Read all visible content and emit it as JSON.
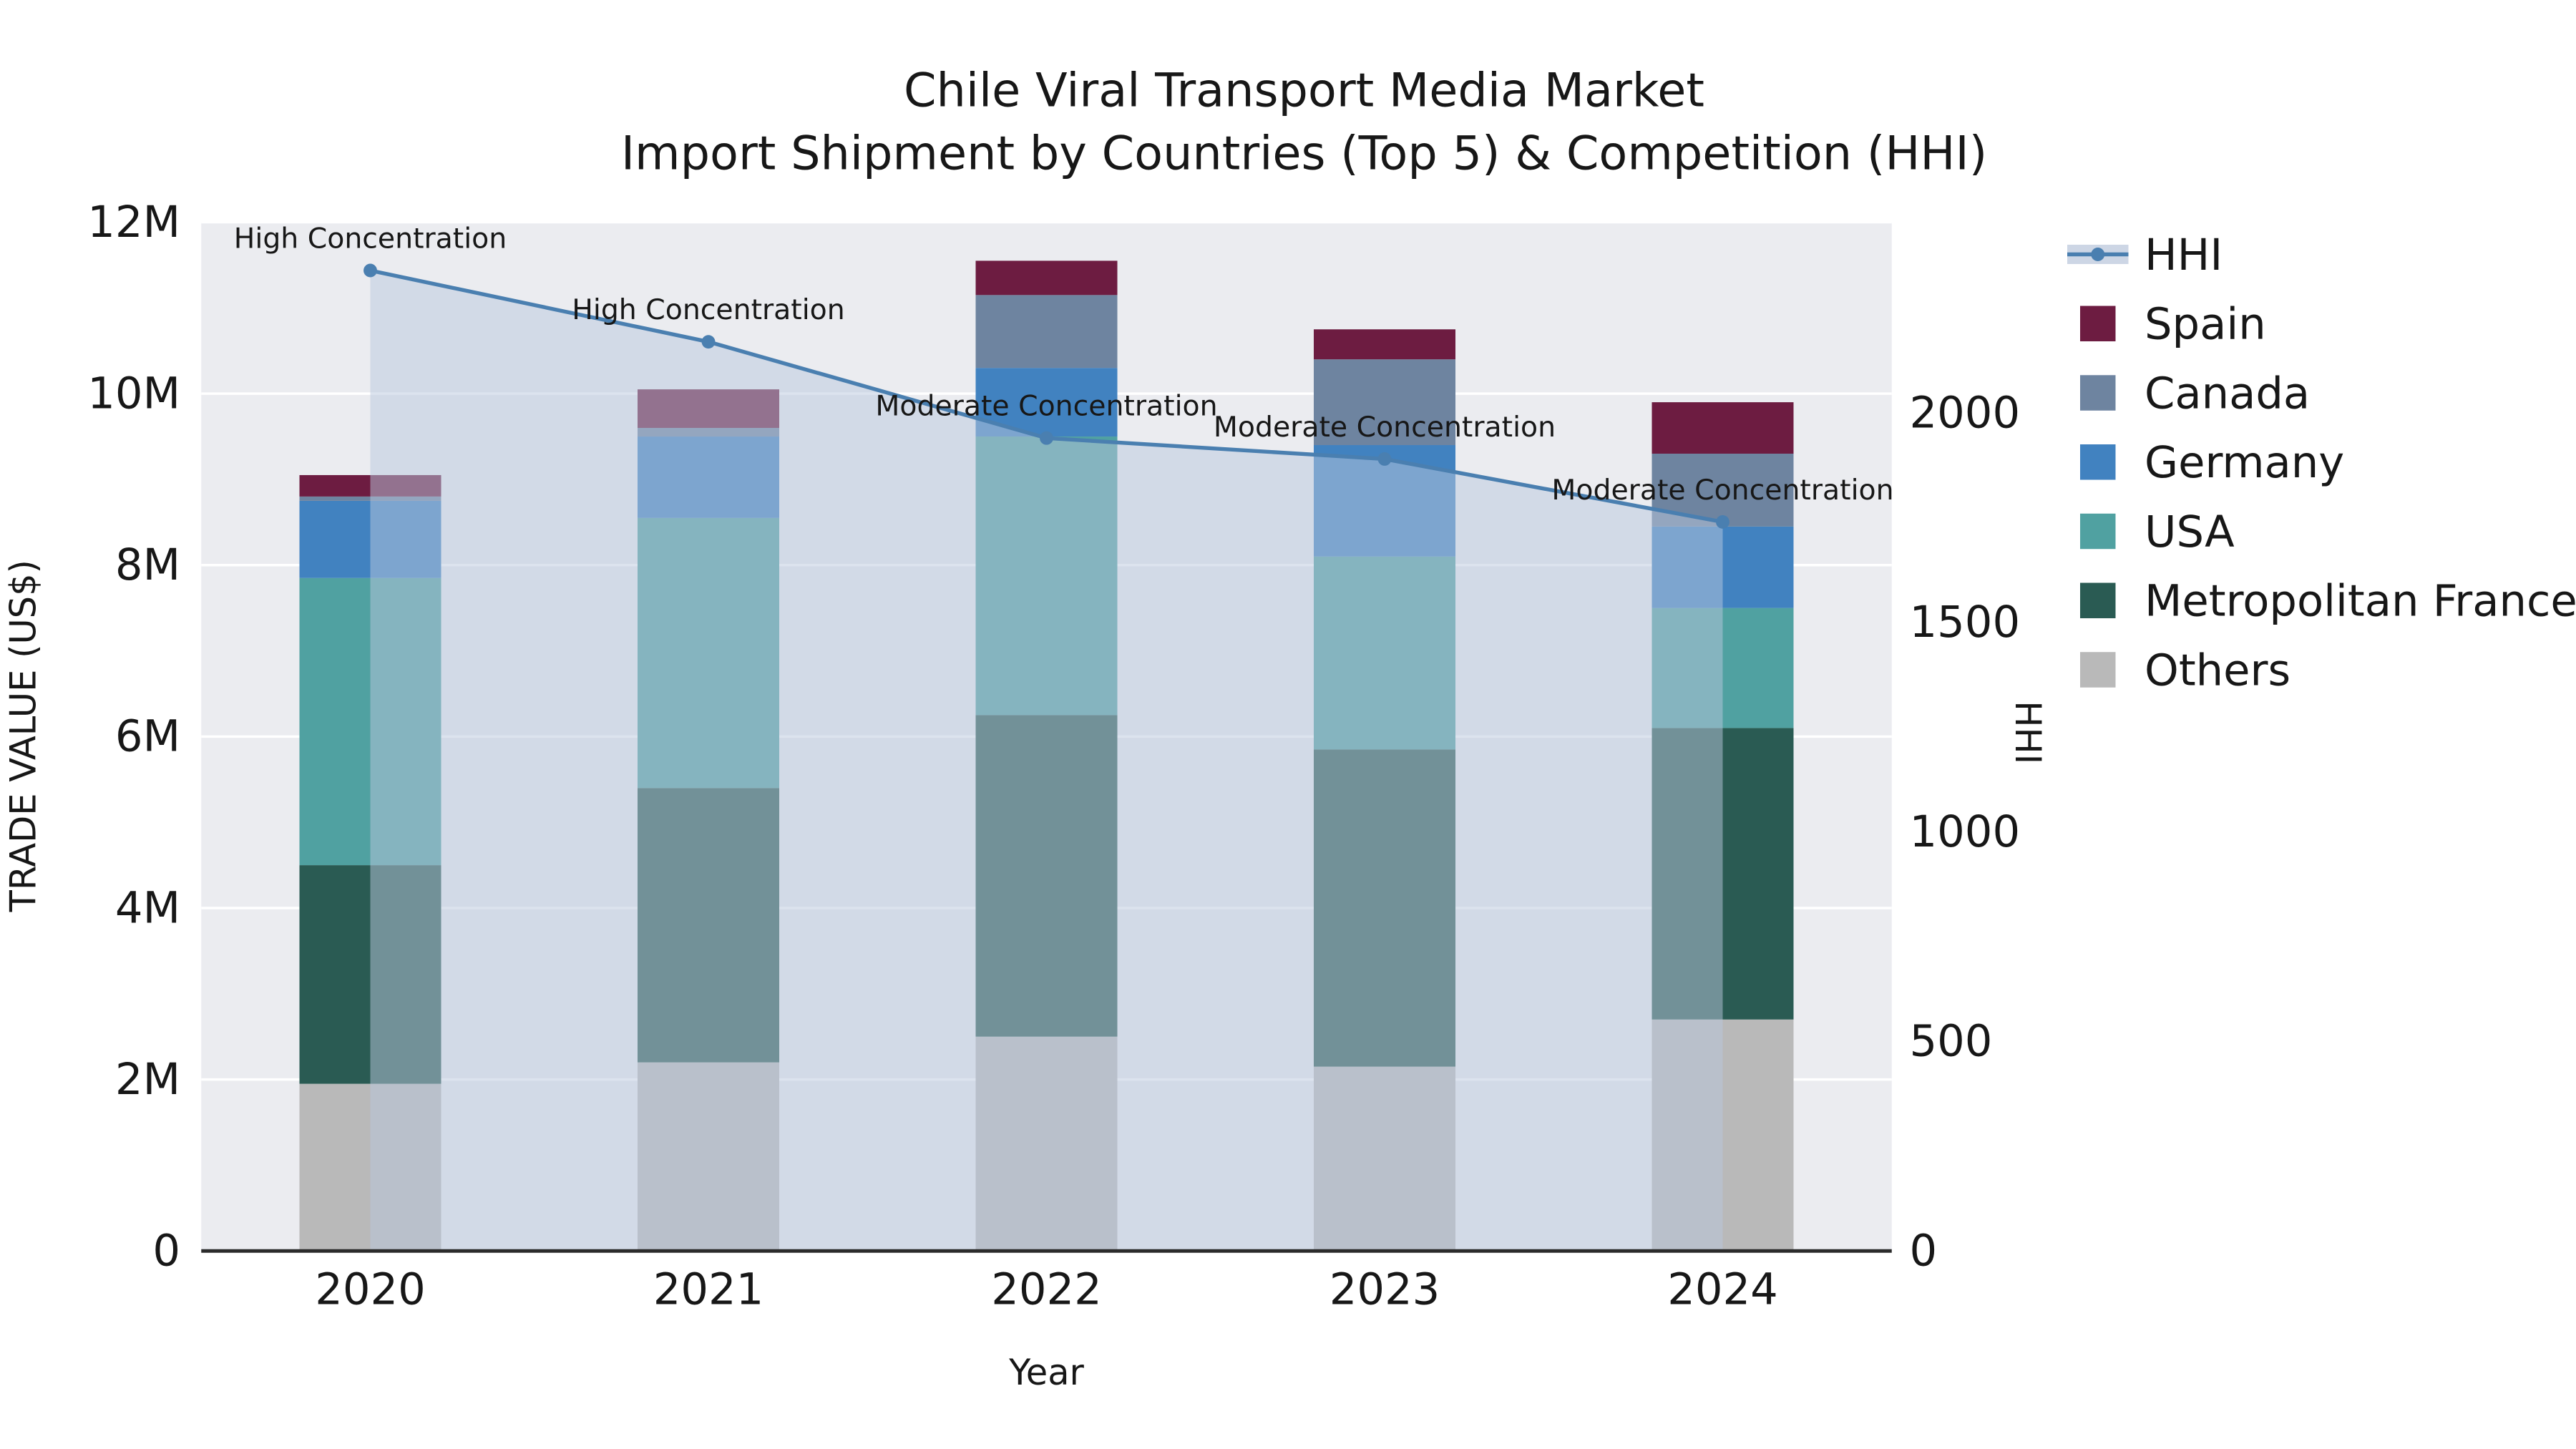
{
  "title": {
    "line1": "Chile Viral Transport Media Market",
    "line2": "Import Shipment by Countries (Top 5) & Competition (HHI)"
  },
  "chart_data": {
    "type": "bar",
    "subtype": "stacked-bars-with-hhi-line-and-area",
    "categories": [
      "2020",
      "2021",
      "2022",
      "2023",
      "2024"
    ],
    "xlabel": "Year",
    "ylabel_left": "TRADE VALUE (US$)",
    "ylabel_right": "HHI",
    "y_left_ticks": [
      "0",
      "2M",
      "4M",
      "6M",
      "8M",
      "10M",
      "12M"
    ],
    "y_left_range_millions": [
      0,
      12
    ],
    "y_right_ticks": [
      "0",
      "500",
      "1000",
      "1500",
      "2000"
    ],
    "value_unit": "millions US$",
    "grid": true,
    "legend_position": "right-outside",
    "series": [
      {
        "name": "Others",
        "color": "#b9b9b9",
        "values": [
          1.95,
          2.2,
          2.5,
          2.15,
          2.7
        ]
      },
      {
        "name": "Metropolitan France",
        "color": "#2a5b53",
        "values": [
          2.55,
          3.2,
          3.75,
          3.7,
          3.4
        ]
      },
      {
        "name": "USA",
        "color": "#50a1a1",
        "values": [
          3.35,
          3.15,
          3.25,
          2.25,
          1.4
        ]
      },
      {
        "name": "Germany",
        "color": "#4182c0",
        "values": [
          0.9,
          0.95,
          0.8,
          1.3,
          0.95
        ]
      },
      {
        "name": "Canada",
        "color": "#6e84a0",
        "values": [
          0.05,
          0.1,
          0.85,
          1.0,
          0.85
        ]
      },
      {
        "name": "Spain",
        "color": "#6d1c41",
        "values": [
          0.25,
          0.45,
          0.4,
          0.35,
          0.6
        ]
      }
    ],
    "hhi": {
      "name": "HHI",
      "color": "#4a7fb0",
      "fill_color": "rgba(186,200,222,0.5)",
      "values": [
        2340,
        2170,
        1940,
        1890,
        1740
      ],
      "annotations": [
        "High Concentration",
        "High Concentration",
        "Moderate Concentration",
        "Moderate Concentration",
        "Moderate Concentration"
      ]
    },
    "legend": [
      "HHI",
      "Spain",
      "Canada",
      "Germany",
      "USA",
      "Metropolitan France",
      "Others"
    ]
  },
  "style": {
    "plot_bg": "#ebecf0",
    "grid_color": "#ffffff",
    "axis_line_color": "#2b2b2b",
    "text_color": "#171717"
  }
}
